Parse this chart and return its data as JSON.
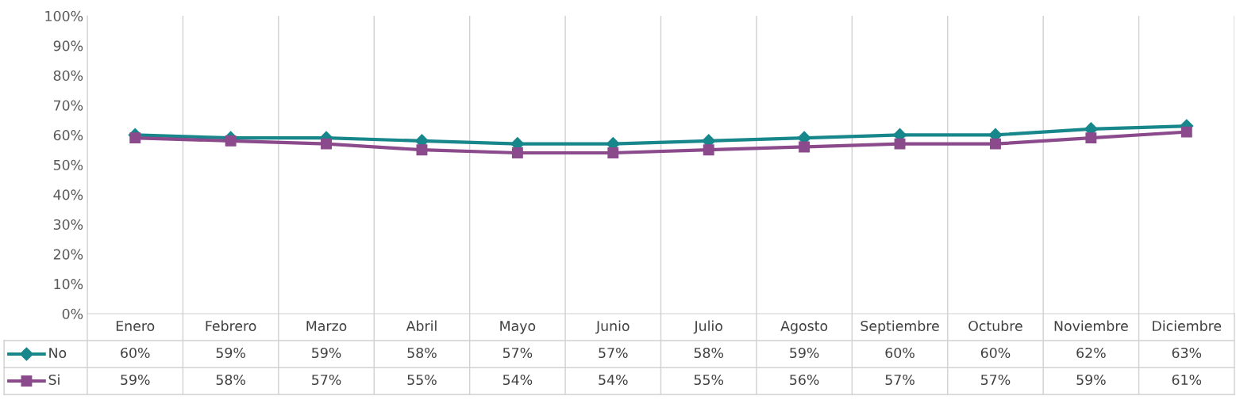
{
  "chart_data": {
    "type": "line",
    "categories": [
      "Enero",
      "Febrero",
      "Marzo",
      "Abril",
      "Mayo",
      "Junio",
      "Julio",
      "Agosto",
      "Septiembre",
      "Octubre",
      "Noviembre",
      "Diciembre"
    ],
    "series": [
      {
        "name": "No",
        "color": "#17878c",
        "marker": "diamond",
        "values": [
          60,
          59,
          59,
          58,
          57,
          57,
          58,
          59,
          60,
          60,
          62,
          63
        ],
        "value_labels": [
          "60%",
          "59%",
          "59%",
          "58%",
          "57%",
          "57%",
          "58%",
          "59%",
          "60%",
          "60%",
          "62%",
          "63%"
        ]
      },
      {
        "name": "Si",
        "color": "#8b4a8b",
        "marker": "square",
        "values": [
          59,
          58,
          57,
          55,
          54,
          54,
          55,
          56,
          57,
          57,
          59,
          61
        ],
        "value_labels": [
          "59%",
          "58%",
          "57%",
          "55%",
          "54%",
          "54%",
          "55%",
          "56%",
          "57%",
          "57%",
          "59%",
          "61%"
        ]
      }
    ],
    "ylim": [
      0,
      100
    ],
    "yticks": [
      {
        "value": 0,
        "label": "0%"
      },
      {
        "value": 10,
        "label": "10%"
      },
      {
        "value": 20,
        "label": "20%"
      },
      {
        "value": 30,
        "label": "30%"
      },
      {
        "value": 40,
        "label": "40%"
      },
      {
        "value": 50,
        "label": "50%"
      },
      {
        "value": 60,
        "label": "60%"
      },
      {
        "value": 70,
        "label": "70%"
      },
      {
        "value": 80,
        "label": "80%"
      },
      {
        "value": 90,
        "label": "90%"
      },
      {
        "value": 100,
        "label": "100%"
      }
    ],
    "grid": "x",
    "legend": "bottom left",
    "line_style": "solid"
  }
}
